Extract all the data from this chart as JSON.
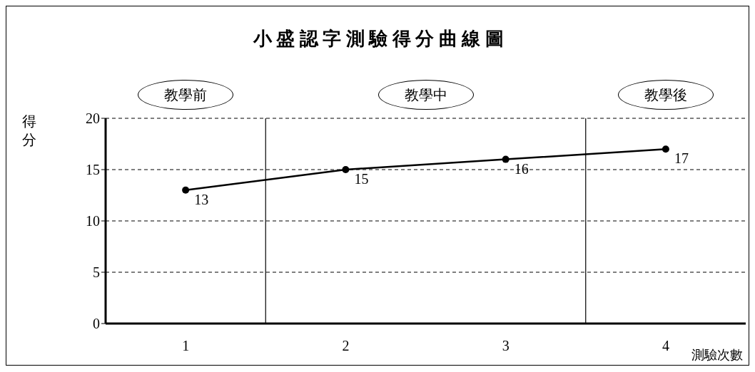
{
  "chart_data": {
    "type": "line",
    "title": "小 盛 認 字 測 驗 得 分 曲 線 圖",
    "xlabel": "測驗次數",
    "ylabel": "得分",
    "x": [
      1,
      2,
      3,
      4
    ],
    "values": [
      13,
      15,
      16,
      17
    ],
    "color": "#000000",
    "xlim": [
      0.5,
      4.5
    ],
    "xticks": [
      1,
      2,
      3,
      4
    ],
    "ylim": [
      0,
      20
    ],
    "yticks": [
      0,
      5,
      10,
      15,
      20
    ],
    "grid": "y",
    "marker": "circle",
    "line_style": "solid",
    "data_labels": true,
    "legend": false,
    "ref_lines": [
      {
        "axis": "x",
        "value": 1.5
      },
      {
        "axis": "x",
        "value": 3.5
      }
    ],
    "annotations": [
      "教學前",
      "教學中",
      "教學後"
    ]
  }
}
